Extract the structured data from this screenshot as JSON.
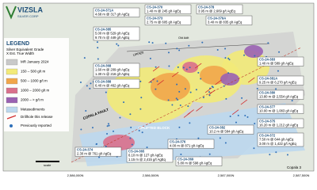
{
  "logo": "VIZSLA",
  "logo_sub": "SILVER CORP",
  "legend": {
    "title": "LEGEND",
    "subtitle": "Silver Equivalent Grade",
    "subtitle2": "X Est. True Width",
    "items": [
      {
        "label": "MR January 2024",
        "color": "#c9c9c9"
      },
      {
        "label": "150 – 500 g/t m",
        "color": "#f2ea78"
      },
      {
        "label": "500 – 1000 g/t m",
        "color": "#f1a64a"
      },
      {
        "label": "1000 – 2000 g/t m",
        "color": "#d9708c"
      },
      {
        "label": "2000 – > g/t m",
        "color": "#9a62b2"
      },
      {
        "label": "Metasediments",
        "color": "#bcd8ee"
      }
    ],
    "drill_new": "Drillhole this release",
    "drill_old": "Previously reported"
  },
  "callouts": [
    {
      "id": "CS-24-371A",
      "lines": [
        "4.68 m @ 317 g/t AgEq"
      ]
    },
    {
      "id": "CS-24-370",
      "lines": [
        "1.40 m @ 245 g/t AgEq"
      ]
    },
    {
      "id": "CS-24-378",
      "lines": [
        "3.95 m @ 2,669 g/t AgEq"
      ]
    },
    {
      "id": "CS-24-373",
      "lines": [
        "2.75 m @ 605 g/t AgEq"
      ]
    },
    {
      "id": "CS-24-379A",
      "lines": [
        "3.40 m @ 835 g/t AgEq"
      ]
    },
    {
      "id": "CS-24-385",
      "lines": [
        "5.00 m @ 529 g/t AgEq",
        "9.70 m @ 449 g/t AgEq"
      ]
    },
    {
      "id": "CS-24-368",
      "lines": [
        "1.60 m @ 209 g/t AgEq",
        "1.30 m @ 216 g/t AgEq"
      ]
    },
    {
      "id": "CS-24-388",
      "lines": [
        "6.40 m @ 462 g/t AgEq"
      ]
    },
    {
      "id": "CS-24-383",
      "lines": [
        "1.40 m @ 589 g/t AgEq"
      ]
    },
    {
      "id": "CS-24-381A",
      "lines": [
        "9.25 m @ 6,270 g/t AgEq"
      ]
    },
    {
      "id": "CS-24-380",
      "lines": [
        "13.80 m @ 2,554 g/t AgEq"
      ]
    },
    {
      "id": "CS-24-377",
      "lines": [
        "10.00 m @ 1,083 g/t AgEq"
      ]
    },
    {
      "id": "CS-24-375",
      "lines": [
        "16.20 m @ 1,212 g/t AgEq"
      ]
    },
    {
      "id": "CS-24-372",
      "lines": [
        "7.50 m @ 644 g/t AgEq",
        "3.00 m @ 1,422 g/t AgEq"
      ]
    },
    {
      "id": "CS-24-382",
      "lines": [
        "10.2 m @ 584 g/t AgEq"
      ]
    },
    {
      "id": "CS-24-376",
      "lines": [
        "4.00 m @ 871 g/t AgEq"
      ]
    },
    {
      "id": "CS-24-374",
      "lines": [
        "2.30 m @ 761 g/t AgEq"
      ]
    },
    {
      "id": "CS-24-365",
      "lines": [
        "6.10 m @ 127 g/t AgEq",
        "1.15 m @ 2,415 g/t AgEq"
      ]
    },
    {
      "id": "CS-24-369",
      "lines": [
        "5.80 m @ 598 g/t AgEq"
      ]
    }
  ],
  "map_labels": {
    "fault": "COPALA FAULT",
    "block": "UPLIFTED BLOCK",
    "upper": "UPPER",
    "adit": "Old Adit",
    "copala3": "Copala 3",
    "scale": "scale"
  },
  "coords": [
    "2,586,000N",
    "2,586,500N",
    "2,587,000N",
    "2,587,500N"
  ]
}
